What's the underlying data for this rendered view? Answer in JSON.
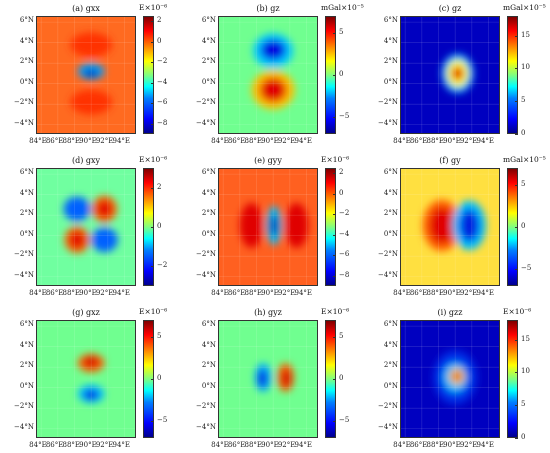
{
  "x_tick_labels": [
    "84°E",
    "86°E",
    "88°E",
    "90°E",
    "92°E",
    "94°E"
  ],
  "y_tick_labels": [
    "6°N",
    "4°N",
    "2°N",
    "0°N",
    "−2°N",
    "−4°N"
  ],
  "chart_data": [
    {
      "type": "heatmap",
      "title": "(a) gxx",
      "colorbar_unit": "E×10⁻⁶",
      "colorbar_ticks": [
        "2",
        "0",
        "−2",
        "−4",
        "−6",
        "−8"
      ],
      "clim": [
        -9,
        2.5
      ],
      "background": "#ff6a20",
      "features": [
        {
          "lon": 90.0,
          "lat": 1.2,
          "rx": 1.6,
          "ry": 0.8,
          "color": "#00a0ff"
        },
        {
          "lon": 90.0,
          "lat": 1.0,
          "rx": 0.9,
          "ry": 0.35,
          "color": "#0000b0"
        },
        {
          "lon": 90.0,
          "lat": 3.8,
          "rx": 2.5,
          "ry": 1.2,
          "color": "#ff3000"
        },
        {
          "lon": 90.0,
          "lat": -1.8,
          "rx": 2.5,
          "ry": 1.2,
          "color": "#ff3000"
        }
      ]
    },
    {
      "type": "heatmap",
      "title": "(b) gz",
      "colorbar_unit": "mGal×10⁻⁵",
      "colorbar_ticks": [
        "5",
        "0",
        "−5"
      ],
      "clim": [
        -7,
        7
      ],
      "background": "#70ff90",
      "features": [
        {
          "lon": 90.0,
          "lat": 3.2,
          "rx": 2.4,
          "ry": 1.7,
          "color": "#00c8ff"
        },
        {
          "lon": 90.0,
          "lat": 3.3,
          "rx": 1.5,
          "ry": 1.0,
          "color": "#0000e0"
        },
        {
          "lon": 90.0,
          "lat": -0.6,
          "rx": 2.6,
          "ry": 1.9,
          "color": "#ffc000"
        },
        {
          "lon": 90.0,
          "lat": -0.6,
          "rx": 1.6,
          "ry": 1.2,
          "color": "#e00000"
        }
      ]
    },
    {
      "type": "heatmap",
      "title": "(c) gz",
      "colorbar_unit": "mGal×10⁻⁵",
      "colorbar_ticks": [
        "15",
        "10",
        "5",
        "0"
      ],
      "clim": [
        0,
        18
      ],
      "background": "#0000c0",
      "features": [
        {
          "lon": 90.3,
          "lat": 1.0,
          "rx": 1.9,
          "ry": 1.9,
          "color": "#00c0ff"
        },
        {
          "lon": 90.3,
          "lat": 1.0,
          "rx": 1.3,
          "ry": 1.3,
          "color": "#ffff00"
        },
        {
          "lon": 90.3,
          "lat": 1.0,
          "rx": 0.7,
          "ry": 0.7,
          "color": "#e00000"
        }
      ]
    },
    {
      "type": "heatmap",
      "title": "(d) gxy",
      "colorbar_unit": "E×10⁻⁶",
      "colorbar_ticks": [
        "2",
        "0",
        "−2"
      ],
      "clim": [
        -3,
        3
      ],
      "background": "#70ffa0",
      "features": [
        {
          "lon": 88.3,
          "lat": 2.6,
          "rx": 1.6,
          "ry": 1.2,
          "color": "#0060ff"
        },
        {
          "lon": 91.6,
          "lat": -0.4,
          "rx": 1.6,
          "ry": 1.2,
          "color": "#0060ff"
        },
        {
          "lon": 91.6,
          "lat": 2.6,
          "rx": 1.5,
          "ry": 1.3,
          "color": "#ff6000"
        },
        {
          "lon": 91.6,
          "lat": 2.6,
          "rx": 0.9,
          "ry": 0.8,
          "color": "#e00000"
        },
        {
          "lon": 88.3,
          "lat": -0.4,
          "rx": 1.5,
          "ry": 1.3,
          "color": "#ff6000"
        },
        {
          "lon": 88.3,
          "lat": -0.4,
          "rx": 0.9,
          "ry": 0.8,
          "color": "#e00000"
        }
      ]
    },
    {
      "type": "heatmap",
      "title": "(e) gyy",
      "colorbar_unit": "E×10⁻⁶",
      "colorbar_ticks": [
        "2",
        "0",
        "−2",
        "−4",
        "−6",
        "−8"
      ],
      "clim": [
        -9,
        2.5
      ],
      "background": "#ff6020",
      "features": [
        {
          "lon": 87.4,
          "lat": 1.0,
          "rx": 1.4,
          "ry": 2.2,
          "color": "#e00000"
        },
        {
          "lon": 92.8,
          "lat": 1.0,
          "rx": 1.4,
          "ry": 2.2,
          "color": "#e00000"
        },
        {
          "lon": 90.1,
          "lat": 1.0,
          "rx": 0.9,
          "ry": 1.9,
          "color": "#00c0ff"
        },
        {
          "lon": 90.1,
          "lat": 1.0,
          "rx": 0.45,
          "ry": 1.1,
          "color": "#0000b0"
        }
      ]
    },
    {
      "type": "heatmap",
      "title": "(f) gy",
      "colorbar_unit": "mGal×10⁻⁵",
      "colorbar_ticks": [
        "5",
        "0",
        "−5"
      ],
      "clim": [
        -7,
        7
      ],
      "background": "#ffe040",
      "features": [
        {
          "lon": 88.4,
          "lat": 1.0,
          "rx": 2.3,
          "ry": 2.5,
          "color": "#ff6000"
        },
        {
          "lon": 88.4,
          "lat": 1.0,
          "rx": 1.5,
          "ry": 1.8,
          "color": "#e00000"
        },
        {
          "lon": 91.7,
          "lat": 1.0,
          "rx": 2.0,
          "ry": 2.4,
          "color": "#00c0ff"
        },
        {
          "lon": 91.7,
          "lat": 1.0,
          "rx": 1.2,
          "ry": 1.6,
          "color": "#0020e0"
        }
      ]
    },
    {
      "type": "heatmap",
      "title": "(g) gxz",
      "colorbar_unit": "E×10⁻⁶",
      "colorbar_ticks": [
        "5",
        "0",
        "−5"
      ],
      "clim": [
        -7,
        7
      ],
      "background": "#70ff90",
      "features": [
        {
          "lon": 90.0,
          "lat": 2.4,
          "rx": 1.6,
          "ry": 0.9,
          "color": "#ff6000"
        },
        {
          "lon": 90.0,
          "lat": 2.5,
          "rx": 0.9,
          "ry": 0.5,
          "color": "#d00000"
        },
        {
          "lon": 90.0,
          "lat": -0.6,
          "rx": 1.6,
          "ry": 0.9,
          "color": "#00c0ff"
        },
        {
          "lon": 90.0,
          "lat": -0.7,
          "rx": 0.9,
          "ry": 0.5,
          "color": "#0020e0"
        }
      ]
    },
    {
      "type": "heatmap",
      "title": "(h) gyz",
      "colorbar_unit": "E×10⁻⁶",
      "colorbar_ticks": [
        "5",
        "0",
        "−5"
      ],
      "clim": [
        -7,
        7
      ],
      "background": "#70ff90",
      "features": [
        {
          "lon": 88.8,
          "lat": 1.0,
          "rx": 1.0,
          "ry": 1.4,
          "color": "#00b0ff"
        },
        {
          "lon": 88.7,
          "lat": 0.9,
          "rx": 0.55,
          "ry": 0.9,
          "color": "#0020e0"
        },
        {
          "lon": 91.5,
          "lat": 1.0,
          "rx": 1.0,
          "ry": 1.4,
          "color": "#ff6000"
        },
        {
          "lon": 91.6,
          "lat": 0.9,
          "rx": 0.55,
          "ry": 0.9,
          "color": "#d00000"
        }
      ]
    },
    {
      "type": "heatmap",
      "title": "(i) gzz",
      "colorbar_unit": "E×10⁻⁶",
      "colorbar_ticks": [
        "15",
        "10",
        "5",
        "0"
      ],
      "clim": [
        0,
        18
      ],
      "background": "#0000c0",
      "features": [
        {
          "lon": 90.0,
          "lat": 1.0,
          "rx": 2.6,
          "ry": 2.6,
          "color": "#0030e8"
        },
        {
          "lon": 90.0,
          "lat": 1.0,
          "rx": 1.4,
          "ry": 1.4,
          "color": "#00c0ff"
        },
        {
          "lon": 90.2,
          "lat": 1.1,
          "rx": 0.9,
          "ry": 0.8,
          "color": "#ffc000"
        },
        {
          "lon": 90.2,
          "lat": 1.1,
          "rx": 0.45,
          "ry": 0.4,
          "color": "#d00000"
        }
      ]
    }
  ]
}
